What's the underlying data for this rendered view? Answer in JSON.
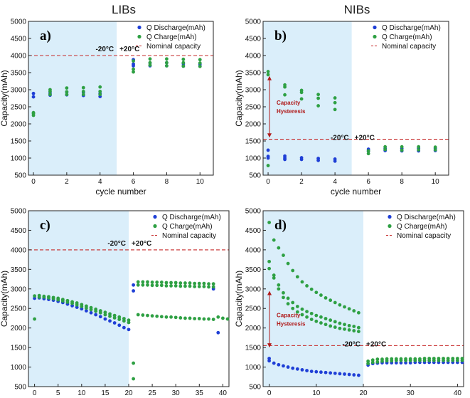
{
  "figure": {
    "col_titles": [
      "LIBs",
      "NIBs"
    ]
  },
  "colors": {
    "discharge": "#1f3fd6",
    "charge": "#2ea043",
    "nominal": "#c62828",
    "cold_region": "#daeefa",
    "hysteresis": "#b01c1c"
  },
  "chart_data": [
    {
      "id": "a",
      "type": "scatter",
      "panel_label": "a)",
      "title": "LIBs",
      "xlabel": "cycle number",
      "ylabel": "Capacity(mAh)",
      "xlim": [
        -0.3,
        10.8
      ],
      "ylim": [
        500,
        5000
      ],
      "xticks": [
        0,
        2,
        4,
        6,
        8,
        10
      ],
      "yticks": [
        500,
        1000,
        1500,
        2000,
        2500,
        3000,
        3500,
        4000,
        4500,
        5000
      ],
      "cold_region": [
        -0.3,
        5.0
      ],
      "cold_label": "-20°C",
      "warm_label": "+20°C",
      "nominal_capacity": 4000,
      "legend": [
        "Q Discharge(mAh)",
        "Q Charge(mAh)",
        "Nominal capacity"
      ],
      "series": [
        {
          "name": "Q Discharge(mAh)",
          "x": [
            0,
            0,
            1,
            1,
            2,
            2,
            3,
            3,
            4,
            4,
            6,
            6,
            6,
            7,
            7,
            8,
            8,
            9,
            9,
            10,
            10
          ],
          "y": [
            2790,
            2890,
            2840,
            2900,
            2850,
            2930,
            2830,
            2920,
            2800,
            2890,
            3700,
            3750,
            3880,
            3700,
            3780,
            3700,
            3790,
            3690,
            3760,
            3690,
            3750
          ]
        },
        {
          "name": "Q Charge(mAh)",
          "x": [
            0,
            0,
            0,
            1,
            1,
            1,
            2,
            2,
            2,
            3,
            3,
            3,
            4,
            4,
            4,
            6,
            6,
            6,
            7,
            7,
            7,
            8,
            8,
            8,
            9,
            9,
            9,
            10,
            10,
            10
          ],
          "y": [
            2250,
            2300,
            2330,
            2860,
            2950,
            3000,
            2860,
            2940,
            3050,
            2860,
            2950,
            3060,
            2860,
            2950,
            3080,
            3520,
            3600,
            3840,
            3720,
            3790,
            3900,
            3700,
            3790,
            3900,
            3690,
            3790,
            3890,
            3680,
            3780,
            3880
          ]
        }
      ]
    },
    {
      "id": "b",
      "type": "scatter",
      "panel_label": "b)",
      "title": "NIBs",
      "xlabel": "cycle number",
      "ylabel": "Capacity(mAh)",
      "xlim": [
        -0.3,
        10.8
      ],
      "ylim": [
        500,
        5000
      ],
      "xticks": [
        0,
        2,
        4,
        6,
        8,
        10
      ],
      "yticks": [
        500,
        1000,
        1500,
        2000,
        2500,
        3000,
        3500,
        4000,
        4500,
        5000
      ],
      "cold_region": [
        -0.3,
        5.0
      ],
      "cold_label": "-20°C",
      "warm_label": "+20°C",
      "nominal_capacity": 1550,
      "hysteresis_label": [
        "Capacity",
        "Hysteresis"
      ],
      "hysteresis_range": [
        1600,
        3400
      ],
      "legend": [
        "Q Discharge(mAh)",
        "Q Charge(mAh)",
        "Nominal capacity"
      ],
      "series": [
        {
          "name": "Q Discharge(mAh)",
          "x": [
            0,
            0,
            0,
            1,
            1,
            1,
            2,
            2,
            3,
            3,
            4,
            4,
            6,
            6,
            7,
            7,
            8,
            8,
            9,
            9,
            10,
            10
          ],
          "y": [
            1000,
            1050,
            1230,
            960,
            1000,
            1060,
            960,
            1010,
            930,
            990,
            910,
            970,
            1200,
            1260,
            1220,
            1280,
            1210,
            1280,
            1210,
            1290,
            1220,
            1290
          ]
        },
        {
          "name": "Q Charge(mAh)",
          "x": [
            0,
            0,
            0,
            1,
            1,
            1,
            2,
            2,
            2,
            3,
            3,
            3,
            4,
            4,
            4,
            6,
            6,
            7,
            7,
            8,
            8,
            9,
            9,
            10,
            10
          ],
          "y": [
            780,
            3440,
            3530,
            2850,
            3080,
            3140,
            2730,
            2920,
            2980,
            2530,
            2750,
            2860,
            2420,
            2620,
            2760,
            1130,
            1210,
            1250,
            1330,
            1230,
            1330,
            1240,
            1330,
            1240,
            1320
          ]
        }
      ]
    },
    {
      "id": "c",
      "type": "scatter",
      "panel_label": "c)",
      "title": "",
      "xlabel": "cycle number",
      "ylabel": "Capacity(mAh)",
      "xlim": [
        -1.3,
        41.3
      ],
      "ylim": [
        500,
        5000
      ],
      "xticks": [
        0,
        5,
        10,
        15,
        20,
        25,
        30,
        35,
        40
      ],
      "yticks": [
        500,
        1000,
        1500,
        2000,
        2500,
        3000,
        3500,
        4000,
        4500,
        5000
      ],
      "cold_region": [
        -1.3,
        20.0
      ],
      "cold_label": "-20°C",
      "warm_label": "+20°C",
      "nominal_capacity": 4000,
      "legend": [
        "Q Discharge(mAh)",
        "Q Charge(mAh)",
        "Nominal capacity"
      ],
      "series": [
        {
          "name": "Q Discharge(mAh)",
          "x": [
            0,
            1,
            2,
            3,
            4,
            5,
            6,
            7,
            8,
            9,
            10,
            11,
            12,
            13,
            14,
            15,
            16,
            17,
            18,
            19,
            20,
            21,
            21,
            38,
            39
          ],
          "y": [
            2760,
            2770,
            2750,
            2730,
            2710,
            2680,
            2650,
            2610,
            2570,
            2530,
            2490,
            2440,
            2390,
            2340,
            2290,
            2230,
            2180,
            2130,
            2070,
            2010,
            1960,
            3100,
            2950,
            3000,
            1880
          ]
        },
        {
          "name": "Q Charge(mAh)",
          "x": [
            0,
            1,
            2,
            3,
            4,
            5,
            6,
            7,
            8,
            9,
            10,
            11,
            12,
            13,
            14,
            15,
            16,
            17,
            18,
            19,
            20,
            0,
            1,
            2,
            3,
            4,
            5,
            6,
            7,
            8,
            9,
            10,
            11,
            12,
            13,
            14,
            15,
            16,
            17,
            18,
            19,
            20,
            21,
            21,
            22,
            23,
            24,
            25,
            26,
            27,
            28,
            29,
            30,
            31,
            32,
            33,
            34,
            35,
            36,
            37,
            38,
            39,
            40,
            41,
            22,
            23,
            24,
            25,
            26,
            27,
            28,
            29,
            30,
            31,
            32,
            33,
            34,
            35,
            36,
            37,
            38,
            22,
            23,
            24,
            25,
            26,
            27,
            28,
            29,
            30,
            31,
            32,
            33,
            34,
            35,
            36,
            37,
            38
          ],
          "y": [
            2820,
            2830,
            2810,
            2800,
            2780,
            2760,
            2730,
            2700,
            2670,
            2640,
            2600,
            2560,
            2520,
            2480,
            2440,
            2400,
            2360,
            2320,
            2280,
            2240,
            2200,
            2230,
            2790,
            2790,
            2770,
            2750,
            2720,
            2690,
            2660,
            2630,
            2590,
            2550,
            2510,
            2470,
            2430,
            2390,
            2340,
            2300,
            2260,
            2220,
            2180,
            2140,
            700,
            1100,
            2340,
            2330,
            2320,
            2310,
            2300,
            2290,
            2280,
            2280,
            2270,
            2260,
            2250,
            2250,
            2240,
            2240,
            2230,
            2230,
            2220,
            2280,
            2250,
            2230,
            3180,
            3180,
            3180,
            3170,
            3170,
            3170,
            3160,
            3160,
            3160,
            3150,
            3150,
            3150,
            3140,
            3140,
            3140,
            3130,
            3130,
            3100,
            3100,
            3100,
            3090,
            3090,
            3090,
            3080,
            3080,
            3080,
            3070,
            3070,
            3070,
            3060,
            3060,
            3060,
            3050,
            3050
          ]
        }
      ]
    },
    {
      "id": "d",
      "type": "scatter",
      "panel_label": "d)",
      "title": "",
      "xlabel": "cycle number",
      "ylabel": "Capacity(mAh)",
      "xlim": [
        -1.3,
        41.3
      ],
      "ylim": [
        500,
        5000
      ],
      "xticks": [
        0,
        10,
        20,
        30,
        40
      ],
      "yticks": [
        500,
        1000,
        1500,
        2000,
        2500,
        3000,
        3500,
        4000,
        4500,
        5000
      ],
      "cold_region": [
        -1.3,
        20.0
      ],
      "cold_label": "-20°C",
      "warm_label": "+20°C",
      "nominal_capacity": 1550,
      "hysteresis_label": [
        "Capacity",
        "Hysteresis"
      ],
      "hysteresis_range": [
        1500,
        2950
      ],
      "legend": [
        "Q Discharge(mAh)",
        "Q Charge(mAh)",
        "Nominal capacity"
      ],
      "series": [
        {
          "name": "Q Discharge(mAh)",
          "x": [
            0,
            1,
            2,
            3,
            4,
            5,
            6,
            7,
            8,
            9,
            10,
            11,
            12,
            13,
            14,
            15,
            16,
            17,
            18,
            19,
            0,
            21,
            22,
            23,
            24,
            25,
            26,
            27,
            28,
            29,
            30,
            31,
            32,
            33,
            34,
            35,
            36,
            37,
            38,
            39,
            40,
            41
          ],
          "y": [
            1160,
            1100,
            1060,
            1030,
            1000,
            970,
            950,
            930,
            910,
            890,
            880,
            870,
            860,
            850,
            840,
            830,
            820,
            810,
            800,
            790,
            1220,
            1050,
            1090,
            1100,
            1110,
            1110,
            1110,
            1110,
            1110,
            1110,
            1110,
            1120,
            1120,
            1120,
            1120,
            1120,
            1120,
            1120,
            1120,
            1120,
            1120,
            1120
          ]
        },
        {
          "name": "Q Charge(mAh)",
          "x": [
            0,
            1,
            2,
            3,
            4,
            5,
            6,
            7,
            8,
            9,
            10,
            11,
            12,
            13,
            14,
            15,
            16,
            17,
            18,
            19,
            0,
            1,
            2,
            3,
            4,
            5,
            6,
            7,
            8,
            9,
            10,
            11,
            12,
            13,
            14,
            15,
            16,
            17,
            18,
            19,
            0,
            1,
            2,
            3,
            4,
            5,
            6,
            7,
            8,
            9,
            10,
            11,
            12,
            13,
            14,
            15,
            16,
            17,
            18,
            19,
            21,
            22,
            23,
            24,
            25,
            26,
            27,
            28,
            29,
            30,
            31,
            32,
            33,
            34,
            35,
            36,
            37,
            38,
            39,
            40,
            41,
            21,
            22,
            23,
            24,
            25,
            26,
            27,
            28,
            29,
            30,
            31,
            32,
            33,
            34,
            35,
            36,
            37,
            38,
            39,
            40,
            41
          ],
          "y": [
            4700,
            4250,
            4050,
            3860,
            3650,
            3470,
            3310,
            3180,
            3080,
            2990,
            2910,
            2840,
            2770,
            2710,
            2650,
            2590,
            2540,
            2490,
            2440,
            2390,
            3700,
            3350,
            3100,
            2900,
            2760,
            2650,
            2550,
            2480,
            2420,
            2370,
            2320,
            2280,
            2240,
            2200,
            2160,
            2120,
            2090,
            2060,
            2040,
            2010,
            3520,
            3280,
            3000,
            2780,
            2620,
            2500,
            2410,
            2340,
            2280,
            2220,
            2170,
            2130,
            2090,
            2050,
            2020,
            1990,
            1970,
            1950,
            1930,
            1910,
            1090,
            1120,
            1130,
            1150,
            1160,
            1160,
            1170,
            1170,
            1170,
            1170,
            1170,
            1170,
            1170,
            1170,
            1170,
            1170,
            1170,
            1170,
            1170,
            1170,
            1170,
            1150,
            1180,
            1200,
            1200,
            1210,
            1210,
            1210,
            1210,
            1210,
            1210,
            1210,
            1210,
            1220,
            1220,
            1220,
            1220,
            1220,
            1220,
            1220,
            1220,
            1220
          ]
        }
      ]
    }
  ]
}
